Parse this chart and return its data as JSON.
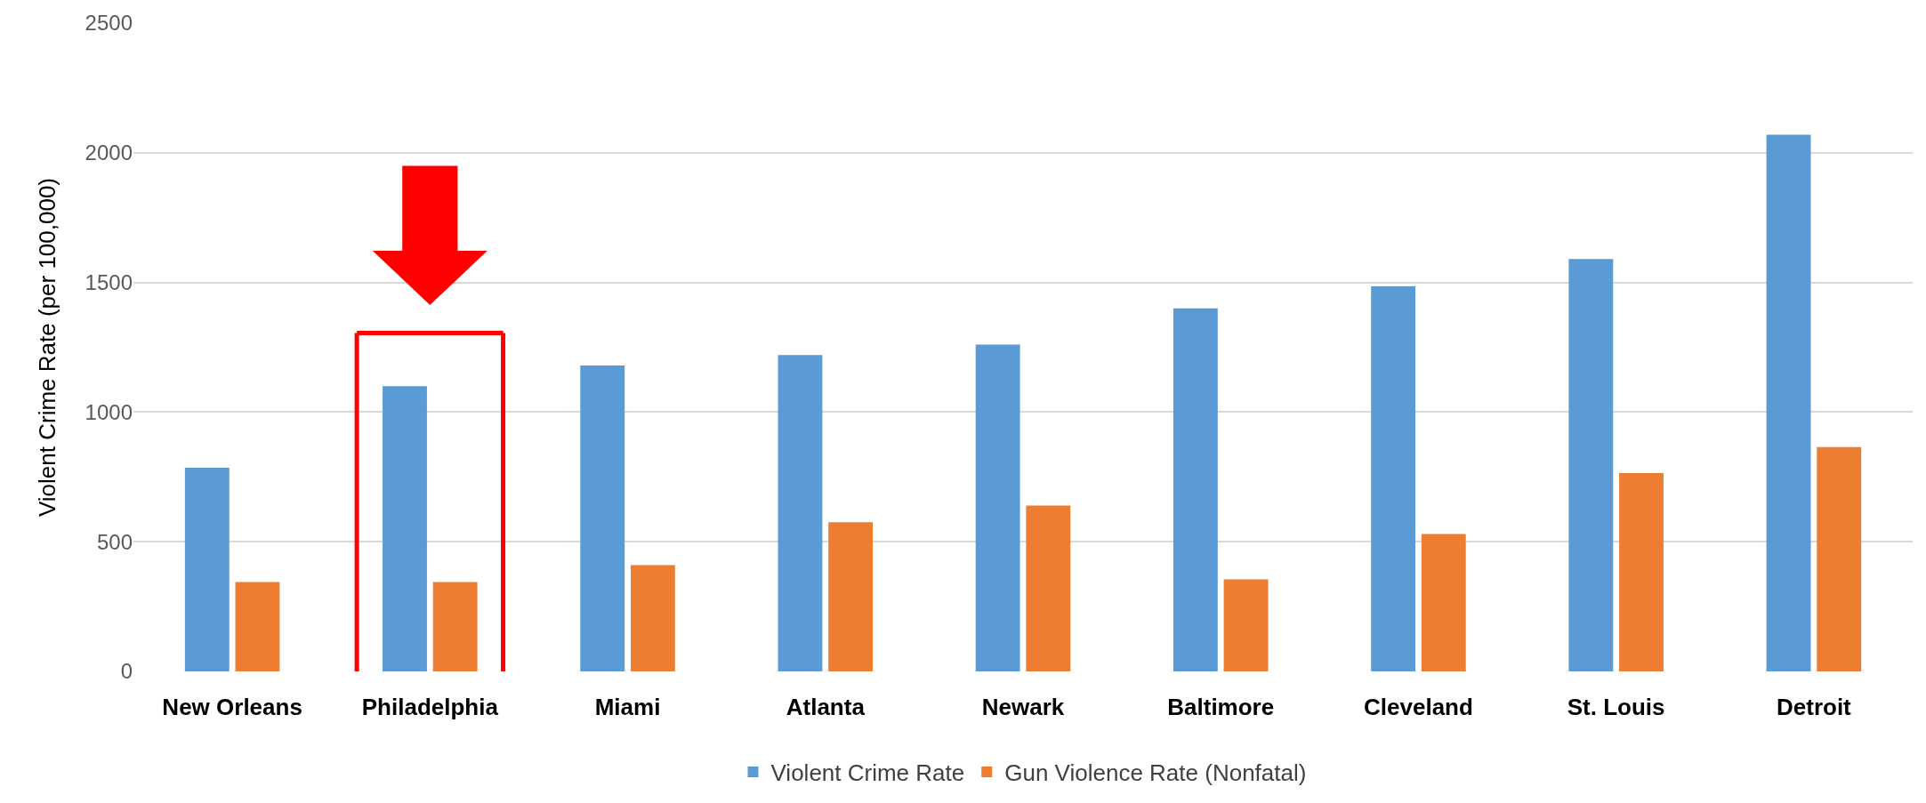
{
  "chart_data": {
    "type": "bar",
    "ylabel": "Violent Crime Rate (per 100,000)",
    "categories": [
      "New Orleans",
      "Philadelphia",
      "Miami",
      "Atlanta",
      "Newark",
      "Baltimore",
      "Cleveland",
      "St. Louis",
      "Detroit"
    ],
    "series": [
      {
        "name": "Violent Crime Rate",
        "color": "#5b9bd5",
        "values": [
          785,
          1100,
          1180,
          1220,
          1260,
          1400,
          1485,
          1590,
          2070
        ]
      },
      {
        "name": "Gun Violence Rate (Nonfatal)",
        "color": "#ed7d31",
        "values": [
          345,
          345,
          410,
          575,
          640,
          355,
          530,
          765,
          865
        ]
      }
    ],
    "ylim": [
      0,
      2500
    ],
    "yticks": [
      0,
      500,
      1000,
      1500,
      2000,
      2500
    ],
    "grid": "y",
    "legend": "bottom"
  }
}
